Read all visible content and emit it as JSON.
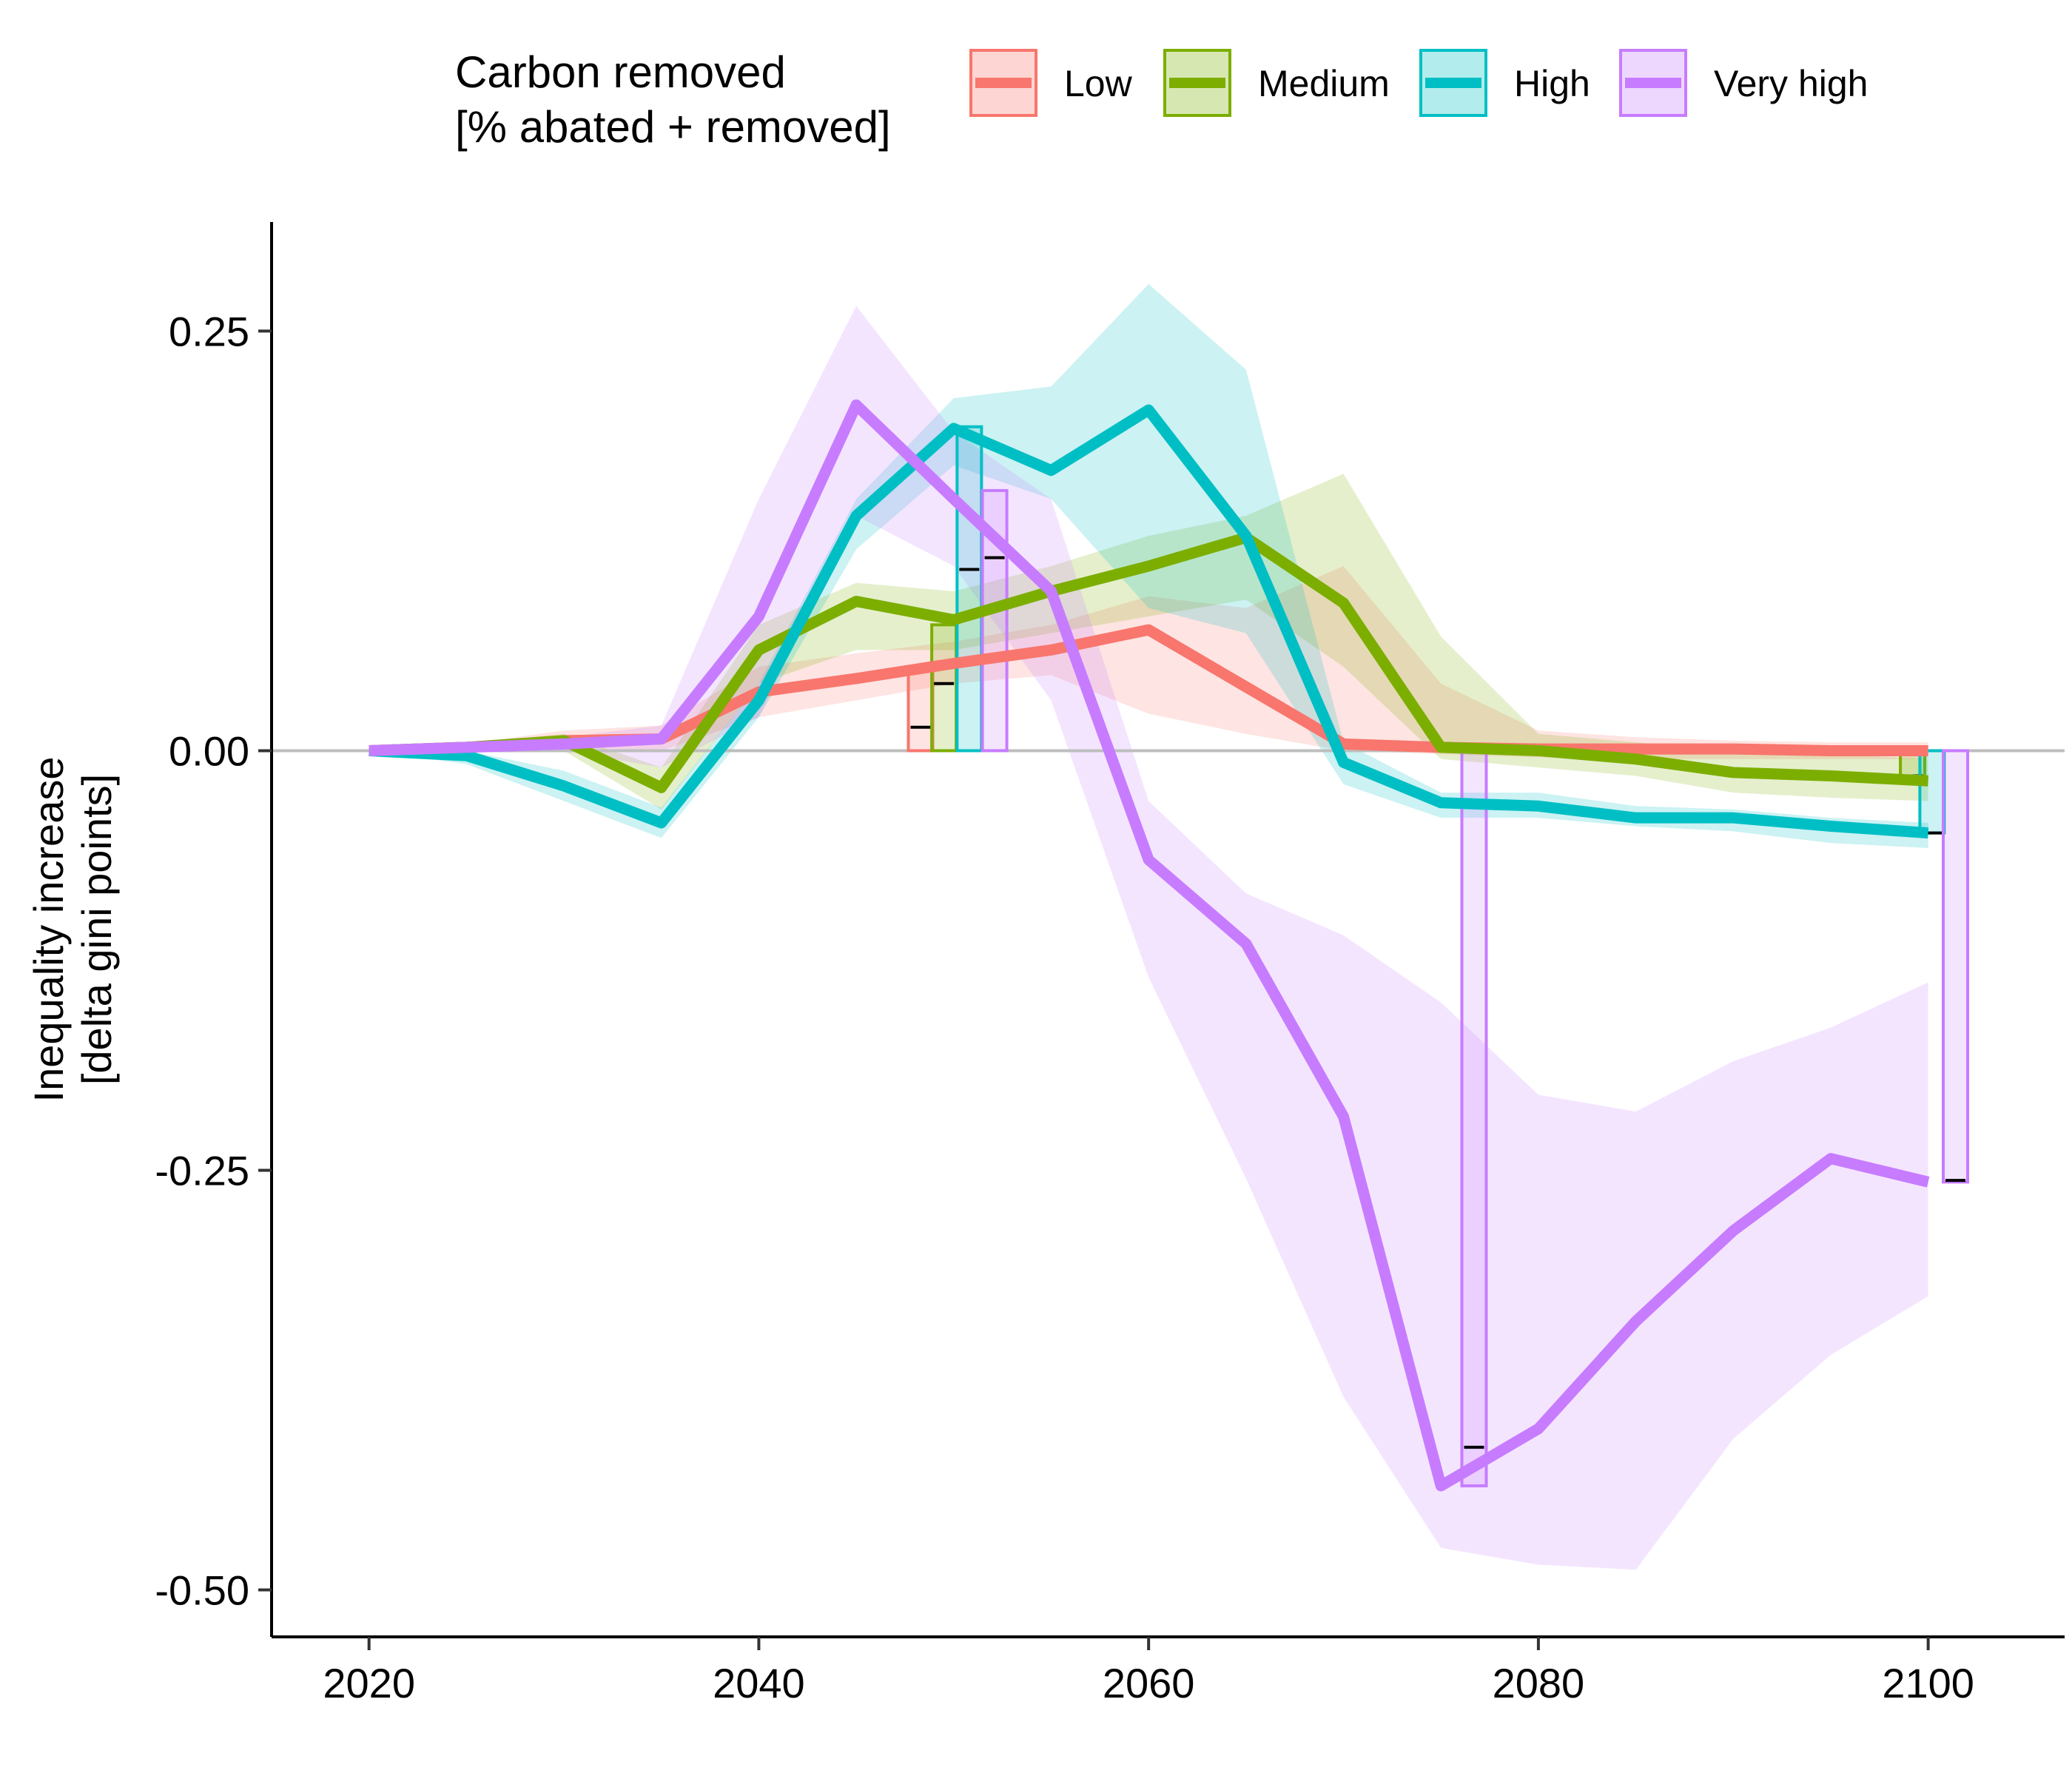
{
  "chart_data": {
    "type": "line",
    "xlabel": "",
    "ylabel": [
      "Inequality increase",
      "[delta gini points]"
    ],
    "xlim": [
      2015,
      2107
    ],
    "ylim": [
      -0.528,
      0.315
    ],
    "x_ticks": [
      2020,
      2040,
      2060,
      2080,
      2100
    ],
    "y_ticks": [
      0.25,
      0.0,
      -0.25,
      -0.5
    ],
    "y_tick_labels": [
      "0.25",
      "0.00",
      "-0.25",
      "-0.50"
    ],
    "reference_line": 0,
    "legend": {
      "title": [
        "Carbon removed",
        "[% abated + removed]"
      ],
      "position": "top"
    },
    "x": [
      2020,
      2025,
      2030,
      2035,
      2040,
      2045,
      2050,
      2055,
      2060,
      2065,
      2070,
      2075,
      2080,
      2085,
      2090,
      2095,
      2100
    ],
    "series": [
      {
        "name": "Low",
        "color": "#F8766D",
        "values": [
          0.0,
          0.002,
          0.006,
          0.007,
          0.035,
          0.043,
          0.052,
          0.06,
          0.072,
          0.038,
          0.004,
          0.002,
          0.001,
          0.001,
          0.001,
          0.0,
          0.0
        ],
        "lower": [
          0.0,
          0.0,
          0.002,
          0.0,
          0.02,
          0.03,
          0.04,
          0.045,
          0.022,
          0.01,
          0.0,
          -0.002,
          -0.004,
          -0.005,
          -0.005,
          -0.005,
          -0.005
        ],
        "upper": [
          0.0,
          0.004,
          0.012,
          0.015,
          0.05,
          0.058,
          0.065,
          0.075,
          0.092,
          0.085,
          0.11,
          0.04,
          0.012,
          0.008,
          0.006,
          0.005,
          0.005
        ],
        "bar": {
          "x": 2048.3,
          "value": 0.05,
          "mean": 0.014
        }
      },
      {
        "name": "Medium",
        "color": "#7CAE00",
        "values": [
          0.0,
          0.002,
          0.006,
          -0.022,
          0.06,
          0.089,
          0.078,
          0.095,
          0.11,
          0.127,
          0.088,
          0.002,
          0.0,
          -0.005,
          -0.013,
          -0.015,
          -0.018
        ],
        "lower": [
          0.0,
          0.0,
          0.0,
          -0.035,
          0.04,
          0.06,
          0.06,
          0.07,
          0.08,
          0.09,
          0.05,
          -0.005,
          -0.01,
          -0.015,
          -0.025,
          -0.028,
          -0.03
        ],
        "upper": [
          0.0,
          0.004,
          0.01,
          -0.01,
          0.075,
          0.1,
          0.095,
          0.11,
          0.128,
          0.14,
          0.165,
          0.068,
          0.01,
          0.005,
          0.0,
          -0.002,
          -0.005
        ],
        "bar": {
          "x": 2049.5,
          "value": 0.075,
          "mean": 0.04,
          "end_value": -0.015,
          "end_x": 2099.2
        }
      },
      {
        "name": "High",
        "color": "#00BFC4",
        "values": [
          0.0,
          -0.003,
          -0.021,
          -0.043,
          0.03,
          0.14,
          0.192,
          0.167,
          0.203,
          0.128,
          -0.007,
          -0.031,
          -0.033,
          -0.04,
          -0.04,
          -0.045,
          -0.049
        ],
        "lower": [
          0.0,
          -0.008,
          -0.03,
          -0.052,
          0.02,
          0.12,
          0.17,
          0.15,
          0.085,
          0.07,
          -0.02,
          -0.04,
          -0.04,
          -0.045,
          -0.048,
          -0.055,
          -0.058
        ],
        "upper": [
          0.0,
          0.0,
          -0.012,
          -0.034,
          0.04,
          0.15,
          0.21,
          0.217,
          0.278,
          0.227,
          0.005,
          -0.025,
          -0.025,
          -0.033,
          -0.035,
          -0.04,
          -0.043
        ],
        "bar": {
          "x": 2050.8,
          "value": 0.193,
          "mean": 0.108,
          "end_value": -0.049,
          "end_x": 2100.2
        }
      },
      {
        "name": "Very high",
        "color": "#C77CFF",
        "values": [
          0.0,
          0.002,
          0.004,
          0.007,
          0.08,
          0.206,
          0.15,
          0.095,
          -0.065,
          -0.115,
          -0.218,
          -0.438,
          -0.404,
          -0.34,
          -0.286,
          -0.243,
          -0.257
        ],
        "lower": [
          0.0,
          0.0,
          0.0,
          -0.01,
          0.02,
          0.14,
          0.11,
          0.03,
          -0.135,
          -0.255,
          -0.385,
          -0.475,
          -0.485,
          -0.488,
          -0.41,
          -0.36,
          -0.325
        ],
        "upper": [
          0.0,
          0.004,
          0.008,
          0.015,
          0.15,
          0.265,
          0.19,
          0.15,
          -0.03,
          -0.085,
          -0.11,
          -0.15,
          -0.205,
          -0.215,
          -0.185,
          -0.165,
          -0.138
        ],
        "bar": {
          "x": 2052.1,
          "value": 0.155,
          "mean": 0.115,
          "end_value": -0.438,
          "end_x": 2076.7,
          "end_mean": -0.415,
          "final_value": -0.257,
          "final_x": 2101.4,
          "final_mean": -0.256
        }
      }
    ]
  }
}
